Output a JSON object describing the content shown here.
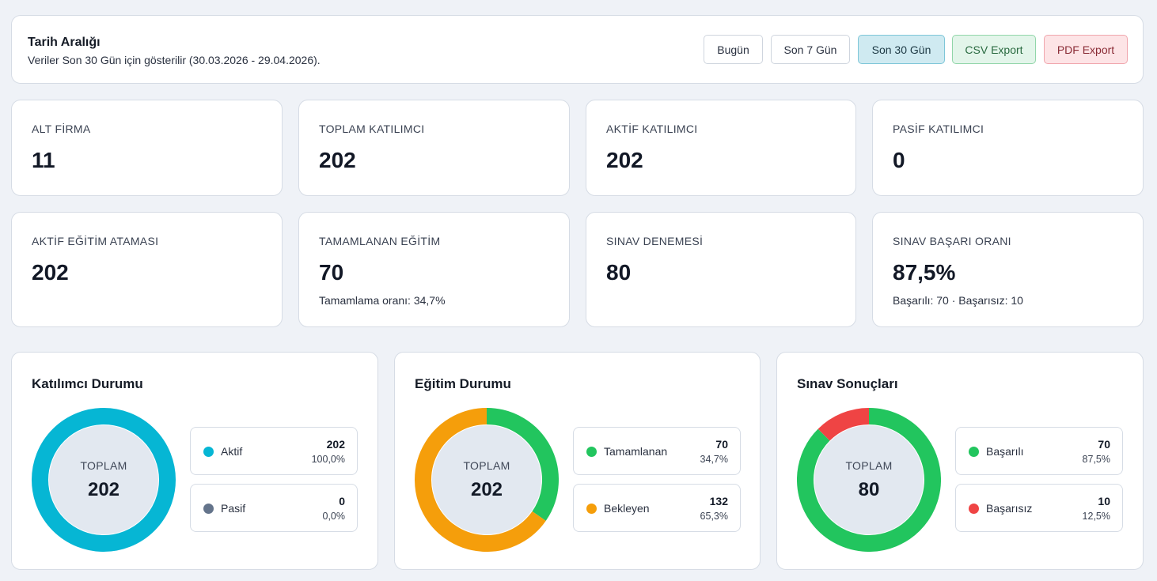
{
  "header": {
    "title": "Tarih Aralığı",
    "subtitle": "Veriler Son 30 Gün için gösterilir (30.03.2026 - 29.04.2026).",
    "buttons": {
      "today": "Bugün",
      "last7": "Son 7 Gün",
      "last30": "Son 30 Gün",
      "csv": "CSV Export",
      "pdf": "PDF Export"
    },
    "active_range": "Son 30 Gün"
  },
  "stats": [
    {
      "label": "ALT FİRMA",
      "value": "11",
      "sub": ""
    },
    {
      "label": "TOPLAM KATILIMCI",
      "value": "202",
      "sub": ""
    },
    {
      "label": "AKTİF KATILIMCI",
      "value": "202",
      "sub": ""
    },
    {
      "label": "PASİF KATILIMCI",
      "value": "0",
      "sub": ""
    },
    {
      "label": "AKTİF EĞİTİM ATAMASI",
      "value": "202",
      "sub": ""
    },
    {
      "label": "TAMAMLANAN EĞİTİM",
      "value": "70",
      "sub": "Tamamlama oranı: 34,7%"
    },
    {
      "label": "SINAV DENEMESİ",
      "value": "80",
      "sub": ""
    },
    {
      "label": "SINAV BAŞARI ORANI",
      "value": "87,5%",
      "sub": "Başarılı: 70 · Başarısız: 10"
    }
  ],
  "chart_data": [
    {
      "type": "pie",
      "title": "Katılımcı Durumu",
      "center_label": "TOPLAM",
      "center_value": "202",
      "total": 202,
      "series": [
        {
          "name": "Aktif",
          "value": 202,
          "value_label": "202",
          "pct": "100,0%",
          "color": "#06b6d4"
        },
        {
          "name": "Pasif",
          "value": 0,
          "value_label": "0",
          "pct": "0,0%",
          "color": "#64748b"
        }
      ]
    },
    {
      "type": "pie",
      "title": "Eğitim Durumu",
      "center_label": "TOPLAM",
      "center_value": "202",
      "total": 202,
      "series": [
        {
          "name": "Tamamlanan",
          "value": 70,
          "value_label": "70",
          "pct": "34,7%",
          "color": "#22c55e"
        },
        {
          "name": "Bekleyen",
          "value": 132,
          "value_label": "132",
          "pct": "65,3%",
          "color": "#f59e0b"
        }
      ]
    },
    {
      "type": "pie",
      "title": "Sınav Sonuçları",
      "center_label": "TOPLAM",
      "center_value": "80",
      "total": 80,
      "series": [
        {
          "name": "Başarılı",
          "value": 70,
          "value_label": "70",
          "pct": "87,5%",
          "color": "#22c55e"
        },
        {
          "name": "Başarısız",
          "value": 10,
          "value_label": "10",
          "pct": "12,5%",
          "color": "#ef4444"
        }
      ]
    }
  ],
  "colors": {
    "background": "#eff2f7",
    "card": "#ffffff",
    "donut_center": "#e2e8f0"
  }
}
